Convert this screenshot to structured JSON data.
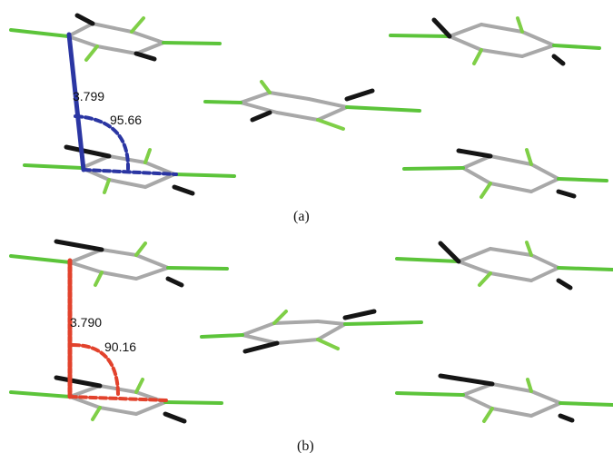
{
  "panels": [
    {
      "caption": "(a)",
      "distance": "3.799",
      "angle": "95.66",
      "measure_color": "#2b36a3"
    },
    {
      "caption": "(b)",
      "distance": "3.790",
      "angle": "90.16",
      "measure_color": "#e2422c"
    }
  ],
  "colors": {
    "bond": "#a8a8a8",
    "chlorine": "#5cc43a",
    "fluorine": "#7fcf47",
    "hydrogen": "#151515"
  }
}
